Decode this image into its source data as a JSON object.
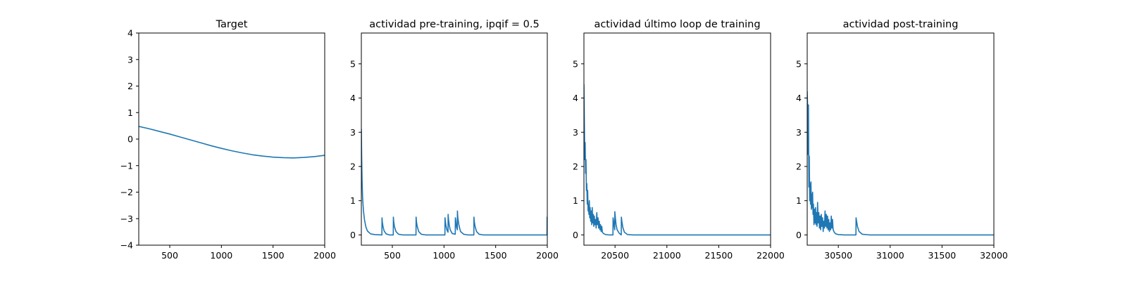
{
  "chart_data": [
    {
      "type": "line",
      "title": "Target",
      "xlim": [
        200,
        2000
      ],
      "ylim": [
        -4,
        4
      ],
      "xticks": [
        500,
        1000,
        1500,
        2000
      ],
      "yticks": [
        -4,
        -3,
        -2,
        -1,
        0,
        1,
        2,
        3,
        4
      ],
      "xtick_labels": [
        "500",
        "1000",
        "1500",
        "2000"
      ],
      "ytick_labels": [
        "−4",
        "−3",
        "−2",
        "−1",
        "0",
        "1",
        "2",
        "3",
        "4"
      ],
      "color": "#1f77b4",
      "series": [
        {
          "x": [
            200,
            300,
            400,
            500,
            600,
            700,
            800,
            900,
            1000,
            1100,
            1200,
            1300,
            1400,
            1500,
            1600,
            1700,
            1800,
            1900,
            2000
          ],
          "y": [
            0.48,
            0.39,
            0.29,
            0.19,
            0.08,
            -0.03,
            -0.14,
            -0.25,
            -0.35,
            -0.44,
            -0.52,
            -0.59,
            -0.64,
            -0.68,
            -0.7,
            -0.71,
            -0.69,
            -0.66,
            -0.61
          ]
        }
      ]
    },
    {
      "type": "line",
      "title": "actividad pre-training, ipqif = 0.5",
      "xlim": [
        200,
        2000
      ],
      "ylim": [
        -0.3,
        5.9
      ],
      "xticks": [
        500,
        1000,
        1500,
        2000
      ],
      "yticks": [
        0,
        1,
        2,
        3,
        4,
        5
      ],
      "xtick_labels": [
        "500",
        "1000",
        "1500",
        "2000"
      ],
      "ytick_labels": [
        "0",
        "1",
        "2",
        "3",
        "4",
        "5"
      ],
      "color": "#1f77b4",
      "series": [
        {
          "x": [
            200,
            203,
            207,
            212,
            220,
            230,
            245,
            260,
            290,
            330,
            399,
            400,
            403,
            410,
            420,
            440,
            470,
            509,
            510,
            513,
            520,
            535,
            560,
            600,
            729,
            730,
            733,
            740,
            755,
            780,
            820,
            1009,
            1010,
            1013,
            1020,
            1030,
            1039,
            1040,
            1044,
            1050,
            1060,
            1080,
            1109,
            1110,
            1114,
            1122,
            1129,
            1130,
            1134,
            1145,
            1160,
            1190,
            1230,
            1289,
            1290,
            1293,
            1300,
            1315,
            1340,
            1380,
            1500,
            1800,
            1997,
            1998,
            2000
          ],
          "y": [
            3.1,
            2.3,
            1.6,
            1.1,
            0.72,
            0.45,
            0.22,
            0.11,
            0.03,
            0.01,
            0.0,
            0.5,
            0.38,
            0.24,
            0.12,
            0.03,
            0.0,
            0.0,
            0.52,
            0.4,
            0.25,
            0.1,
            0.02,
            0.0,
            0.0,
            0.52,
            0.4,
            0.26,
            0.1,
            0.02,
            0.0,
            0.0,
            0.5,
            0.4,
            0.25,
            0.13,
            0.08,
            0.6,
            0.45,
            0.3,
            0.15,
            0.04,
            0.02,
            0.5,
            0.42,
            0.22,
            0.15,
            0.7,
            0.5,
            0.28,
            0.1,
            0.02,
            0.0,
            0.0,
            0.52,
            0.4,
            0.26,
            0.1,
            0.02,
            0.0,
            0.0,
            0.0,
            0.0,
            0.52,
            0.5
          ]
        }
      ]
    },
    {
      "type": "line",
      "title": "actividad último loop de training",
      "xlim": [
        20200,
        22000
      ],
      "ylim": [
        -0.3,
        5.9
      ],
      "xticks": [
        20500,
        21000,
        21500,
        22000
      ],
      "yticks": [
        0,
        1,
        2,
        3,
        4,
        5
      ],
      "xtick_labels": [
        "20500",
        "21000",
        "21500",
        "22000"
      ],
      "ytick_labels": [
        "0",
        "1",
        "2",
        "3",
        "4",
        "5"
      ],
      "color": "#1f77b4",
      "series": [
        {
          "x": [
            20200,
            20204,
            20208,
            20212,
            20216,
            20220,
            20224,
            20228,
            20232,
            20236,
            20240,
            20244,
            20248,
            20252,
            20256,
            20260,
            20265,
            20270,
            20275,
            20280,
            20285,
            20290,
            20295,
            20300,
            20306,
            20312,
            20318,
            20324,
            20330,
            20336,
            20342,
            20348,
            20354,
            20360,
            20366,
            20372,
            20378,
            20385,
            20395,
            20410,
            20440,
            20480,
            20481,
            20486,
            20492,
            20497,
            20498,
            20503,
            20510,
            20520,
            20540,
            20560,
            20561,
            20566,
            20575,
            20590,
            20620,
            20680,
            20800,
            21200,
            21600,
            22000
          ],
          "y": [
            4.4,
            3.3,
            2.2,
            2.7,
            1.8,
            2.2,
            1.3,
            1.5,
            0.9,
            1.3,
            0.7,
            0.9,
            0.6,
            1.0,
            0.5,
            0.8,
            0.4,
            0.7,
            0.3,
            0.8,
            0.35,
            0.6,
            0.25,
            0.55,
            0.3,
            0.45,
            0.2,
            0.65,
            0.3,
            0.5,
            0.2,
            0.4,
            0.15,
            0.3,
            0.1,
            0.25,
            0.08,
            0.05,
            0.03,
            0.01,
            0.0,
            0.0,
            0.5,
            0.4,
            0.25,
            0.15,
            0.68,
            0.5,
            0.3,
            0.15,
            0.05,
            0.0,
            0.52,
            0.4,
            0.22,
            0.08,
            0.01,
            0.0,
            0.0,
            0.0,
            0.0,
            0.0
          ]
        }
      ]
    },
    {
      "type": "line",
      "title": "actividad post-training",
      "xlim": [
        30200,
        32000
      ],
      "ylim": [
        -0.3,
        5.9
      ],
      "xticks": [
        30500,
        31000,
        31500,
        32000
      ],
      "yticks": [
        0,
        1,
        2,
        3,
        4,
        5
      ],
      "xtick_labels": [
        "30500",
        "31000",
        "31500",
        "32000"
      ],
      "ytick_labels": [
        "0",
        "1",
        "2",
        "3",
        "4",
        "5"
      ],
      "color": "#1f77b4",
      "series": [
        {
          "x": [
            30200,
            30204,
            30208,
            30212,
            30216,
            30220,
            30224,
            30228,
            30232,
            30236,
            30240,
            30244,
            30248,
            30252,
            30256,
            30260,
            30265,
            30270,
            30275,
            30280,
            30285,
            30290,
            30295,
            30300,
            30306,
            30312,
            30318,
            30324,
            30330,
            30336,
            30342,
            30348,
            30354,
            30360,
            30366,
            30372,
            30378,
            30384,
            30390,
            30396,
            30402,
            30408,
            30414,
            30420,
            30426,
            30432,
            30438,
            30444,
            30450,
            30460,
            30475,
            30500,
            30560,
            30670,
            30671,
            30676,
            30685,
            30700,
            30730,
            30800,
            31000,
            31500,
            32000
          ],
          "y": [
            4.2,
            3.7,
            2.35,
            3.8,
            1.4,
            2.3,
            1.0,
            1.5,
            0.9,
            1.55,
            0.75,
            1.2,
            0.8,
            1.25,
            0.6,
            0.9,
            0.3,
            0.75,
            0.35,
            0.8,
            0.3,
            0.65,
            0.25,
            0.95,
            0.35,
            0.65,
            0.2,
            0.55,
            0.15,
            0.6,
            0.25,
            0.5,
            0.1,
            0.4,
            0.2,
            0.7,
            0.25,
            0.6,
            0.2,
            0.55,
            0.15,
            0.45,
            0.1,
            0.35,
            0.15,
            0.55,
            0.2,
            0.45,
            0.15,
            0.08,
            0.03,
            0.01,
            0.0,
            0.0,
            0.5,
            0.4,
            0.24,
            0.1,
            0.02,
            0.0,
            0.0,
            0.0,
            0.0
          ]
        }
      ]
    }
  ]
}
